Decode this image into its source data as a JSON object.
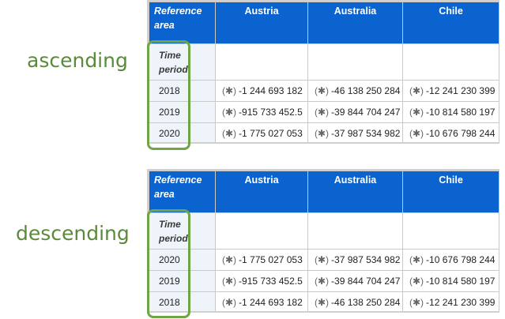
{
  "labels": {
    "ascending": "ascending",
    "descending": "descending"
  },
  "colors": {
    "header_bg": "#0b63cf",
    "row_header_bg": "#eef4f9",
    "highlight": "#6fa544",
    "label_text": "#5a8a3a"
  },
  "ascending_table": {
    "corner_header": "Reference area",
    "columns": [
      "Austria",
      "Australia",
      "Chile"
    ],
    "time_period_label": "Time period",
    "rows": [
      {
        "year": "2018",
        "cells": [
          {
            "flag": "(✱)",
            "value": "-1 244 693 182"
          },
          {
            "flag": "(✱)",
            "value": "-46 138 250 284"
          },
          {
            "flag": "(✱)",
            "value": "-12 241 230 399"
          }
        ]
      },
      {
        "year": "2019",
        "cells": [
          {
            "flag": "(✱)",
            "value": "-915 733 452.5"
          },
          {
            "flag": "(✱)",
            "value": "-39 844 704 247"
          },
          {
            "flag": "(✱)",
            "value": "-10 814 580 197"
          }
        ]
      },
      {
        "year": "2020",
        "cells": [
          {
            "flag": "(✱)",
            "value": "-1 775 027 053"
          },
          {
            "flag": "(✱)",
            "value": "-37 987 534 982"
          },
          {
            "flag": "(✱)",
            "value": "-10 676 798 244"
          }
        ]
      }
    ]
  },
  "descending_table": {
    "corner_header": "Reference area",
    "columns": [
      "Austria",
      "Australia",
      "Chile"
    ],
    "time_period_label": "Time period",
    "rows": [
      {
        "year": "2020",
        "cells": [
          {
            "flag": "(✱)",
            "value": "-1 775 027 053"
          },
          {
            "flag": "(✱)",
            "value": "-37 987 534 982"
          },
          {
            "flag": "(✱)",
            "value": "-10 676 798 244"
          }
        ]
      },
      {
        "year": "2019",
        "cells": [
          {
            "flag": "(✱)",
            "value": "-915 733 452.5"
          },
          {
            "flag": "(✱)",
            "value": "-39 844 704 247"
          },
          {
            "flag": "(✱)",
            "value": "-10 814 580 197"
          }
        ]
      },
      {
        "year": "2018",
        "cells": [
          {
            "flag": "(✱)",
            "value": "-1 244 693 182"
          },
          {
            "flag": "(✱)",
            "value": "-46 138 250 284"
          },
          {
            "flag": "(✱)",
            "value": "-12 241 230 399"
          }
        ]
      }
    ]
  }
}
